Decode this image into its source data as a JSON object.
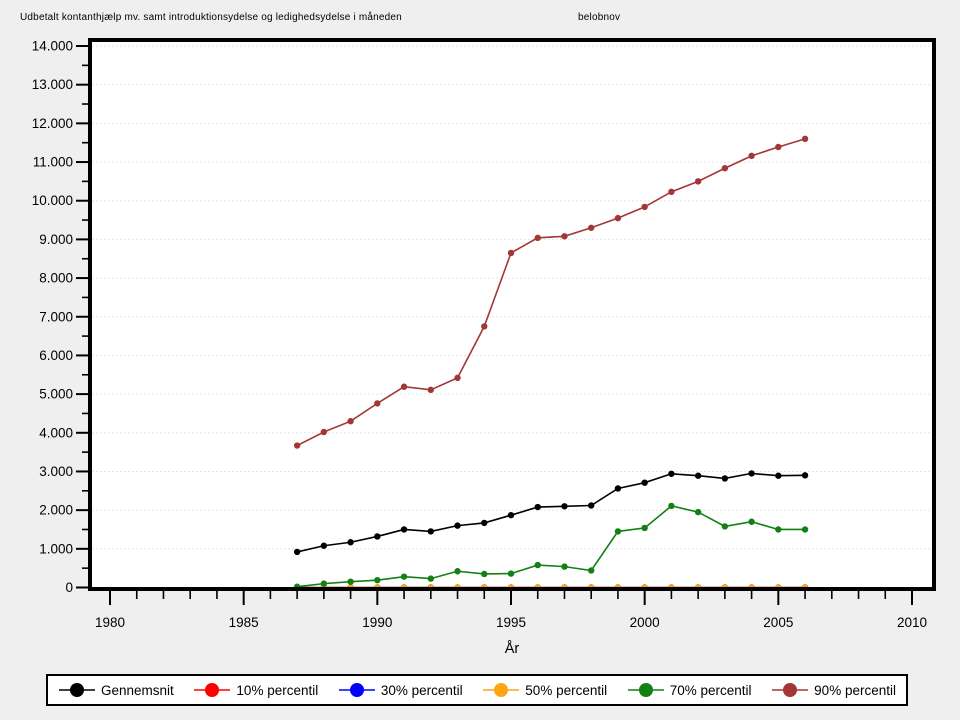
{
  "header": {
    "title": "Udbetalt kontanthjælp mv. samt introduktionsydelse og ledighedsydelse i måneden",
    "variable_label": "belobnov"
  },
  "chart_data": {
    "type": "line",
    "title": "Udbetalt kontanthjælp mv. samt introduktionsydelse og ledighedsydelse i måneden",
    "subtitle": "belobnov",
    "xlabel": "År",
    "ylabel": "",
    "grid": "horizontal",
    "legend_position": "bottom",
    "x_axis": {
      "min": 1980,
      "max": 2010,
      "major_step": 5,
      "minor_step": 1
    },
    "y_axis": {
      "min": 0,
      "max": 14000,
      "major_step": 1000,
      "minor_step": 500
    },
    "x": [
      1987,
      1988,
      1989,
      1990,
      1991,
      1992,
      1993,
      1994,
      1995,
      1996,
      1997,
      1998,
      1999,
      2000,
      2001,
      2002,
      2003,
      2004,
      2005,
      2006
    ],
    "series": [
      {
        "name": "Gennemsnit",
        "color": "#000000",
        "values": [
          920,
          1080,
          1170,
          1320,
          1500,
          1450,
          1600,
          1670,
          1870,
          2080,
          2100,
          2120,
          2560,
          2710,
          2940,
          2890,
          2820,
          2950,
          2890,
          2900
        ]
      },
      {
        "name": "10% percentil",
        "color": "#ff0000",
        "values": [
          0,
          0,
          0,
          0,
          0,
          0,
          0,
          0,
          0,
          0,
          0,
          0,
          0,
          0,
          0,
          0,
          0,
          0,
          0,
          0
        ]
      },
      {
        "name": "30% percentil",
        "color": "#0000ff",
        "values": [
          0,
          0,
          0,
          0,
          0,
          0,
          0,
          0,
          0,
          0,
          0,
          0,
          0,
          0,
          0,
          0,
          0,
          0,
          0,
          0
        ]
      },
      {
        "name": "50% percentil",
        "color": "#ffa513",
        "values": [
          0,
          0,
          0,
          0,
          0,
          0,
          0,
          0,
          0,
          0,
          0,
          0,
          0,
          0,
          0,
          0,
          0,
          0,
          0,
          0
        ]
      },
      {
        "name": "70% percentil",
        "color": "#128012",
        "values": [
          20,
          100,
          150,
          190,
          280,
          230,
          420,
          350,
          360,
          580,
          540,
          440,
          1450,
          1540,
          2110,
          1950,
          1580,
          1700,
          1500,
          1500
        ]
      },
      {
        "name": "90% percentil",
        "color": "#a33636",
        "values": [
          3670,
          4020,
          4300,
          4760,
          5190,
          5110,
          5420,
          6750,
          8650,
          9040,
          9080,
          9300,
          9550,
          9840,
          10230,
          10500,
          10840,
          11160,
          11390,
          11600
        ]
      }
    ],
    "colors": {
      "background": "#efefef",
      "plot_background": "#ffffff",
      "gridline": "#e5e5e5",
      "axis": "#000000"
    }
  }
}
